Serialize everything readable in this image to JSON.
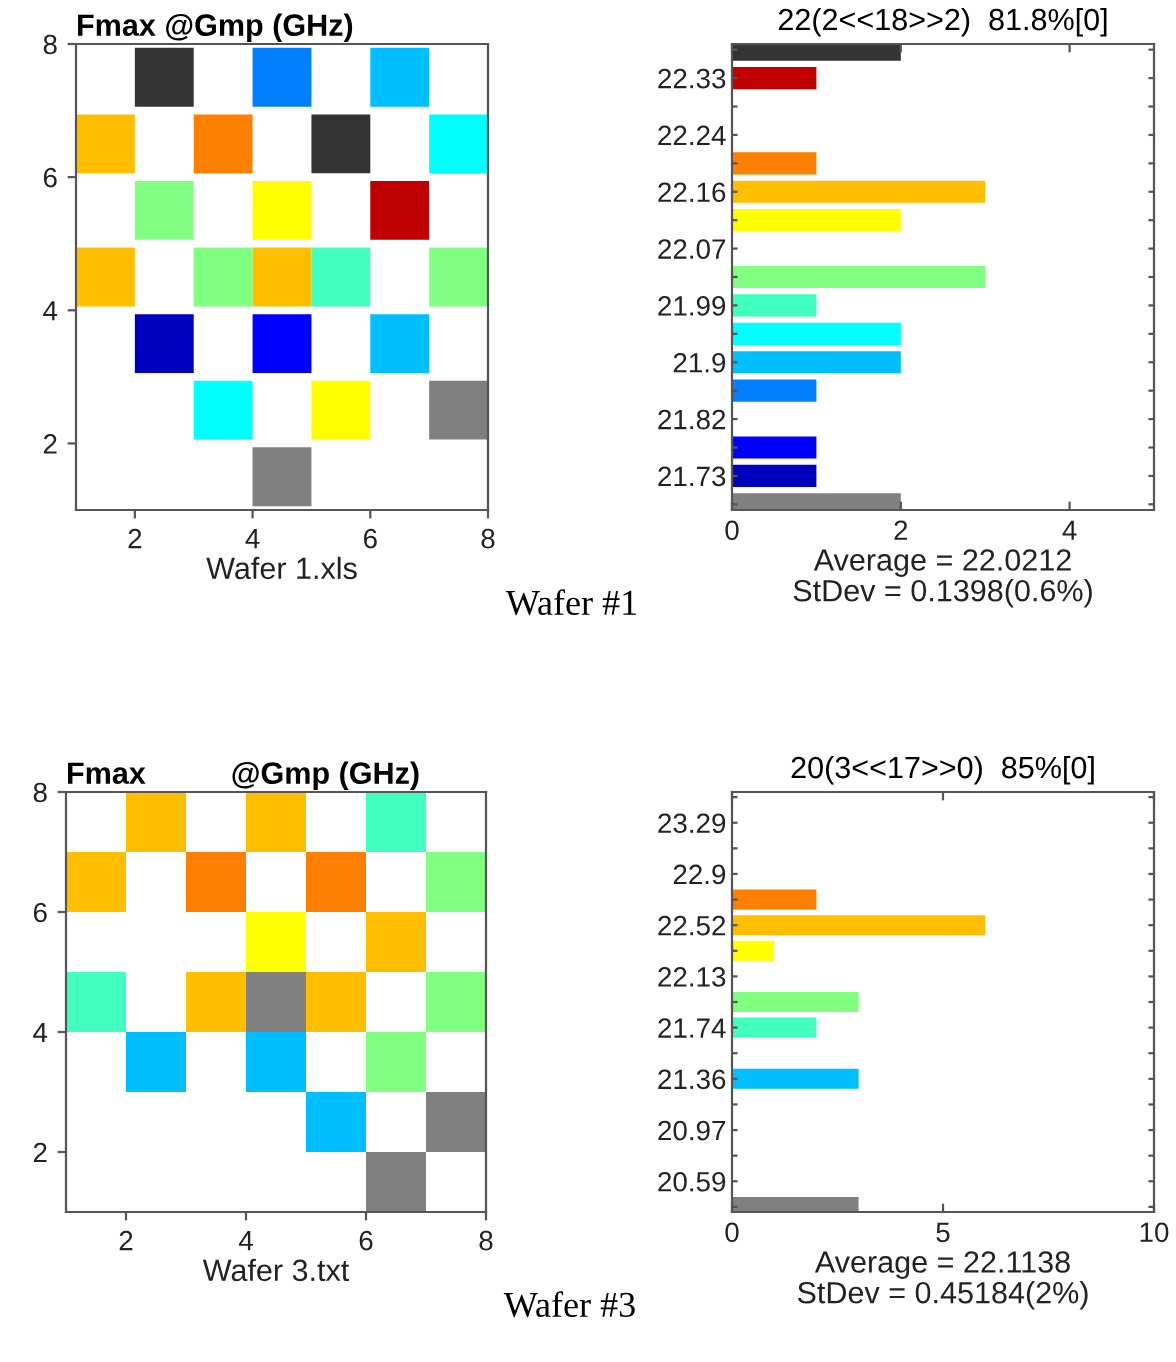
{
  "chart_data": [
    {
      "type": "scatter",
      "title": "Fmax @Gmp (GHz)",
      "xlabel": "Wafer 1.xls",
      "annotations": [
        "Wafer #1"
      ],
      "marker": "square",
      "series": [
        {
          "color": "#333333",
          "x": [
            2.5,
            5.5
          ],
          "values": [
            7.5,
            6.5
          ]
        },
        {
          "color": "#0080ff",
          "x": [
            4.5
          ],
          "values": [
            7.5
          ]
        },
        {
          "color": "#00bfff",
          "x": [
            6.5,
            6.5
          ],
          "values": [
            7.5,
            3.5
          ]
        },
        {
          "color": "#ffbf00",
          "x": [
            1.5,
            1.5,
            4.5
          ],
          "values": [
            6.5,
            4.5,
            4.5
          ]
        },
        {
          "color": "#ff8000",
          "x": [
            3.5
          ],
          "values": [
            6.5
          ]
        },
        {
          "color": "#00ffff",
          "x": [
            7.5,
            3.5
          ],
          "values": [
            6.5,
            2.5
          ]
        },
        {
          "color": "#80ff80",
          "x": [
            2.5,
            3.5,
            7.5
          ],
          "values": [
            5.5,
            4.5,
            4.5
          ]
        },
        {
          "color": "#ffff00",
          "x": [
            4.5,
            5.5
          ],
          "values": [
            5.5,
            2.5
          ]
        },
        {
          "color": "#c00000",
          "x": [
            6.5
          ],
          "values": [
            5.5
          ]
        },
        {
          "color": "#40ffbf",
          "x": [
            5.5
          ],
          "values": [
            4.5
          ]
        },
        {
          "color": "#0000bf",
          "x": [
            2.5
          ],
          "values": [
            3.5
          ]
        },
        {
          "color": "#0000ff",
          "x": [
            4.5
          ],
          "values": [
            3.5
          ]
        },
        {
          "color": "#808080",
          "x": [
            7.5,
            4.5
          ],
          "values": [
            2.5,
            1.5
          ]
        }
      ],
      "xlim": [
        1,
        8
      ],
      "ylim": [
        1,
        8
      ],
      "xticks": [
        2,
        4,
        6,
        8
      ],
      "yticks": [
        2,
        4,
        6,
        8
      ]
    },
    {
      "type": "bar",
      "orientation": "horizontal",
      "title": "22(2<<18>>2)  81.8%[0]",
      "xlabel": "Average = 22.0212\nStDev = 0.1398(0.6%)",
      "categories": [
        null,
        "22.33",
        null,
        "22.24",
        null,
        "22.16",
        null,
        "22.07",
        null,
        "21.99",
        null,
        "21.9",
        null,
        "21.82",
        null,
        "21.73",
        null
      ],
      "values": [
        2,
        1,
        0,
        0,
        1,
        3,
        2,
        0,
        3,
        1,
        2,
        2,
        1,
        0,
        1,
        1,
        2
      ],
      "colors": [
        "#333333",
        "#c00000",
        "#ff0000",
        "#ff4000",
        "#ff8000",
        "#ffbf00",
        "#ffff00",
        "#bfff40",
        "#80ff80",
        "#40ffbf",
        "#00ffff",
        "#00bfff",
        "#0080ff",
        "#0040ff",
        "#0000ff",
        "#0000bf",
        "#808080"
      ],
      "xlim": [
        0,
        5
      ],
      "xticks": [
        0,
        2,
        4
      ]
    },
    {
      "type": "scatter",
      "title": "Fmax          @Gmp (GHz)",
      "xlabel": "Wafer 3.txt",
      "annotations": [
        "Wafer #3"
      ],
      "marker": "square",
      "series": [
        {
          "color": "#ffbf00",
          "x": [
            2.5,
            4.5,
            1.5,
            6.5,
            3.5,
            5.5
          ],
          "values": [
            7.5,
            7.5,
            6.5,
            5.5,
            4.5,
            4.5
          ]
        },
        {
          "color": "#40ffbf",
          "x": [
            6.5,
            1.5
          ],
          "values": [
            7.5,
            4.5
          ]
        },
        {
          "color": "#ff8000",
          "x": [
            3.5,
            5.5
          ],
          "values": [
            6.5,
            6.5
          ]
        },
        {
          "color": "#80ff80",
          "x": [
            7.5,
            7.5,
            6.5
          ],
          "values": [
            6.5,
            4.5,
            3.5
          ]
        },
        {
          "color": "#ffff00",
          "x": [
            4.5
          ],
          "values": [
            5.5
          ]
        },
        {
          "color": "#808080",
          "x": [
            4.5,
            7.5,
            6.5
          ],
          "values": [
            4.5,
            2.5,
            1.5
          ]
        },
        {
          "color": "#00bfff",
          "x": [
            2.5,
            4.5,
            5.5
          ],
          "values": [
            3.5,
            3.5,
            2.5
          ]
        }
      ],
      "xlim": [
        1,
        8
      ],
      "ylim": [
        1,
        8
      ],
      "xticks": [
        2,
        4,
        6,
        8
      ],
      "yticks": [
        2,
        4,
        6,
        8
      ]
    },
    {
      "type": "bar",
      "orientation": "horizontal",
      "title": "20(3<<17>>0)  85%[0]",
      "xlabel": "Average = 22.1138\nStDev = 0.45184(2%)",
      "categories": [
        null,
        "23.29",
        null,
        "22.9",
        null,
        "22.52",
        null,
        "22.13",
        null,
        "21.74",
        null,
        "21.36",
        null,
        "20.97",
        null,
        "20.59",
        null
      ],
      "values": [
        0,
        0,
        0,
        0,
        2,
        6,
        1,
        0,
        3,
        2,
        0,
        3,
        0,
        0,
        0,
        0,
        3
      ],
      "colors": [
        "#333333",
        "#c00000",
        "#ff0000",
        "#ff4000",
        "#ff8000",
        "#ffbf00",
        "#ffff00",
        "#bfff40",
        "#80ff80",
        "#40ffbf",
        "#00ffff",
        "#00bfff",
        "#0080ff",
        "#0040ff",
        "#0000ff",
        "#0000bf",
        "#808080"
      ],
      "xlim": [
        0,
        10
      ],
      "xticks": [
        0,
        5,
        10
      ]
    }
  ]
}
